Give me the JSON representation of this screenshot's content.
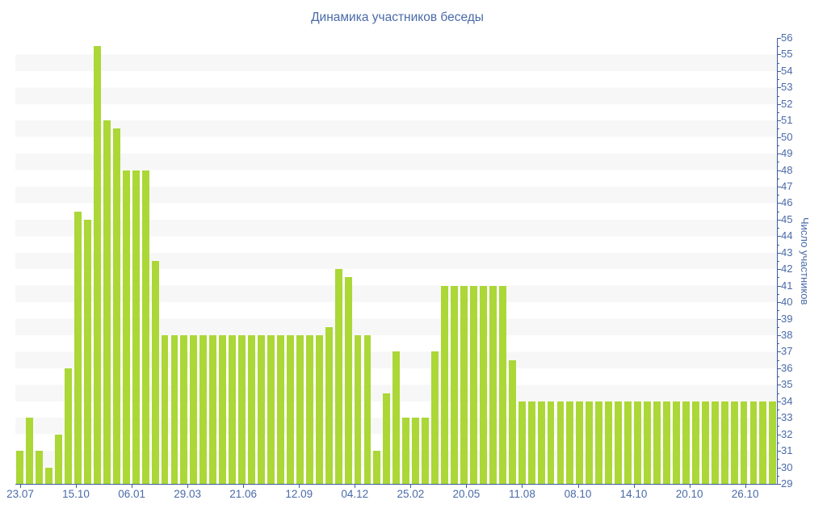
{
  "chart_data": {
    "type": "bar",
    "title": "Динамика участников беседы",
    "ylabel": "Число участников",
    "xlabel": "",
    "ylim": [
      29,
      56
    ],
    "y_tick_step": 1,
    "grid": "horizontal-stripes",
    "legend": false,
    "x_tick_labels": [
      "23.07",
      "15.10",
      "06.01",
      "29.03",
      "21.06",
      "12.09",
      "04.12",
      "25.02",
      "20.05",
      "11.08",
      "08.10",
      "14.10",
      "20.10",
      "26.10"
    ],
    "values": [
      31,
      33,
      31,
      30,
      32,
      36,
      45.5,
      45,
      55.5,
      51,
      50.5,
      48,
      48,
      48,
      42.5,
      38,
      38,
      38,
      38,
      38,
      38,
      38,
      38,
      38,
      38,
      38,
      38,
      38,
      38,
      38,
      38,
      38,
      38.5,
      42,
      41.5,
      38,
      38,
      31,
      34.5,
      37,
      33,
      33,
      33,
      37,
      41,
      41,
      41,
      41,
      41,
      41,
      41,
      36.5,
      34,
      34,
      34,
      34,
      34,
      34,
      34,
      34,
      34,
      34,
      34,
      34,
      34,
      34,
      34,
      34,
      34,
      34,
      34,
      34,
      34,
      34,
      34,
      34,
      34,
      34,
      34
    ],
    "colors": {
      "bar": "#abd737",
      "axis": "#3d5e9e",
      "label": "#4a6aa8",
      "stripe": "#f7f7f7",
      "background": "#ffffff"
    }
  }
}
